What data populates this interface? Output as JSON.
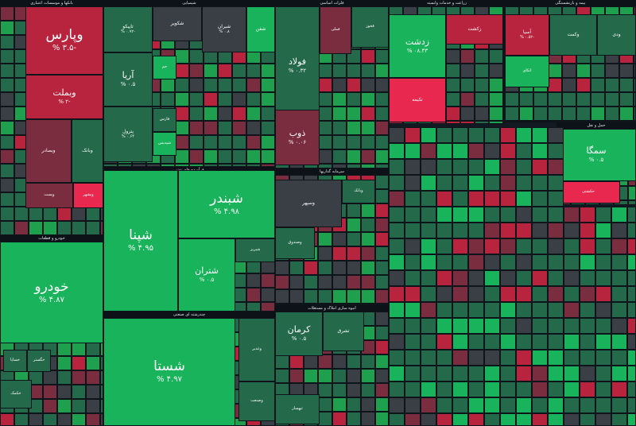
{
  "chart_data": {
    "type": "treemap",
    "colors": {
      "green_strong": "#18b35a",
      "green": "#1fa04f",
      "green_dark": "#23694a",
      "gray": "#3a3f46",
      "red_dark": "#7a2d3f",
      "red": "#b8243d",
      "red_strong": "#e8284e"
    },
    "sectors": [
      {
        "name": "بانکها و موسسات اعتباری",
        "tiles": [
          {
            "name": "وپارس",
            "value": "% ۳.۵-"
          },
          {
            "name": "وبملت",
            "value": "% ۲-"
          },
          {
            "name": "وبصادر",
            "value": ""
          },
          {
            "name": "وبانک",
            "value": ""
          },
          {
            "name": "وپست",
            "value": ""
          },
          {
            "name": "وبشهر",
            "value": ""
          }
        ]
      },
      {
        "name": "شیمیایی",
        "tiles": [
          {
            "name": "تاپیکو",
            "value": "% ۰.۹۲-"
          },
          {
            "name": "شکویر",
            "value": ""
          },
          {
            "name": "شیران",
            "value": "% ۰.۸"
          },
          {
            "name": "شفن",
            "value": ""
          },
          {
            "name": "آریا",
            "value": "% ۰.۵"
          },
          {
            "name": "پترول",
            "value": "% ۰.۶۴"
          },
          {
            "name": "جم",
            "value": ""
          },
          {
            "name": "فارس",
            "value": ""
          },
          {
            "name": "شپدیس",
            "value": ""
          }
        ]
      },
      {
        "name": "فلزات اساسی",
        "tiles": [
          {
            "name": "فولاد",
            "value": "% ۰.۳۲"
          },
          {
            "name": "فملی",
            "value": ""
          },
          {
            "name": "فخوز",
            "value": ""
          },
          {
            "name": "ذوب",
            "value": "% ۰.۰۶"
          }
        ]
      },
      {
        "name": "زراعت و خدمات وابسته",
        "tiles": [
          {
            "name": "زدشت",
            "value": "% ۰۸.۴۳"
          },
          {
            "name": "زکشت",
            "value": ""
          },
          {
            "name": "تکیمه",
            "value": ""
          }
        ]
      },
      {
        "name": "بیمه و بازنشستگی",
        "tiles": [
          {
            "name": "آسیا",
            "value": "% ۰.۵۲-"
          },
          {
            "name": "وکمت",
            "value": ""
          },
          {
            "name": "ودی",
            "value": ""
          },
          {
            "name": "اتکای",
            "value": ""
          }
        ]
      },
      {
        "name": "حمل و نقل",
        "tiles": [
          {
            "name": "سمگا",
            "value": "% ۰.۵"
          },
          {
            "name": "حکشتی",
            "value": "% ۱.۶"
          },
          {
            "name": "حسینا",
            "value": ""
          }
        ]
      },
      {
        "name": "فرآورده های نفتی",
        "tiles": [
          {
            "name": "شپنا",
            "value": "% ۴.۹۵"
          },
          {
            "name": "شبندر",
            "value": "% ۴.۹۸"
          },
          {
            "name": "شتران",
            "value": "% ۰.۵"
          },
          {
            "name": "شبریز",
            "value": ""
          }
        ]
      },
      {
        "name": "خودرو و قطعات",
        "tiles": [
          {
            "name": "خودرو",
            "value": "% ۴.۸۷"
          },
          {
            "name": "خساپا",
            "value": ""
          },
          {
            "name": "خگستر",
            "value": ""
          },
          {
            "name": "خکمک",
            "value": ""
          }
        ]
      },
      {
        "name": "سرمایه گذاریها",
        "tiles": [
          {
            "name": "وسپهر",
            "value": ""
          },
          {
            "name": "وبانک",
            "value": ""
          },
          {
            "name": "وصندوق",
            "value": ""
          }
        ]
      },
      {
        "name": "انبوه سازی املاک و مستغلات",
        "tiles": [
          {
            "name": "کرمان",
            "value": "% ۰.۵"
          },
          {
            "name": "ثشرق",
            "value": ""
          },
          {
            "name": "ثبهساز",
            "value": ""
          }
        ]
      },
      {
        "name": "چندرشته ای صنعتی",
        "tiles": [
          {
            "name": "شستا",
            "value": "% ۴.۹۷"
          },
          {
            "name": "وغدیر",
            "value": ""
          },
          {
            "name": "وصنعت",
            "value": ""
          }
        ]
      }
    ]
  }
}
